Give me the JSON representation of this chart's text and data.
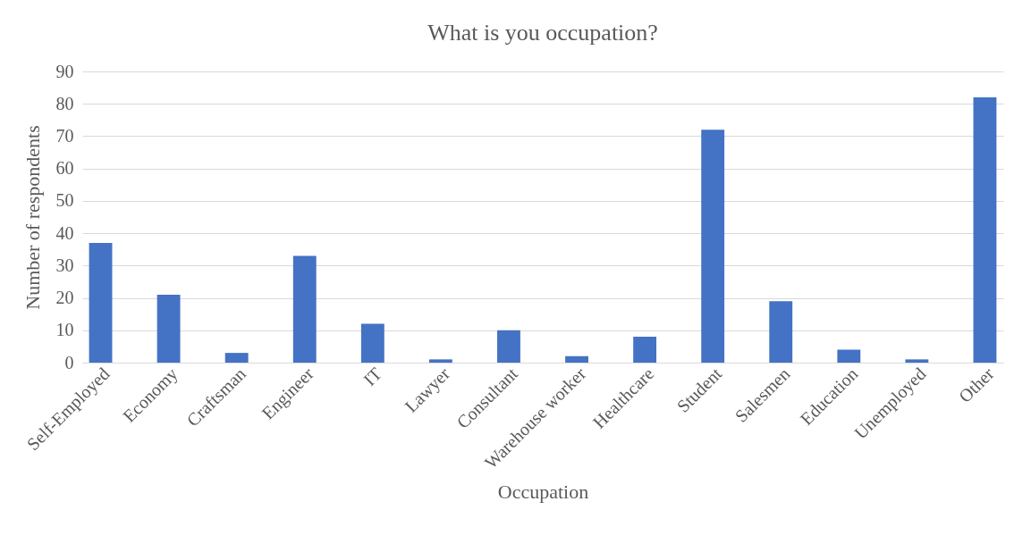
{
  "chart_data": {
    "type": "bar",
    "title": "What is you occupation?",
    "xlabel": "Occupation",
    "ylabel": "Number of respondents",
    "categories": [
      "Self-Employed",
      "Economy",
      "Craftsman",
      "Engineer",
      "IT",
      "Lawyer",
      "Consultant",
      "Warehouse worker",
      "Healthcare",
      "Student",
      "Salesmen",
      "Education",
      "Unemployed",
      "Other"
    ],
    "values": [
      37,
      21,
      3,
      33,
      12,
      1,
      10,
      2,
      8,
      72,
      19,
      4,
      1,
      82
    ],
    "color": "#4472c4",
    "ylim": [
      0,
      90
    ],
    "yticks": [
      0,
      10,
      20,
      30,
      40,
      50,
      60,
      70,
      80,
      90
    ],
    "grid": "y"
  }
}
